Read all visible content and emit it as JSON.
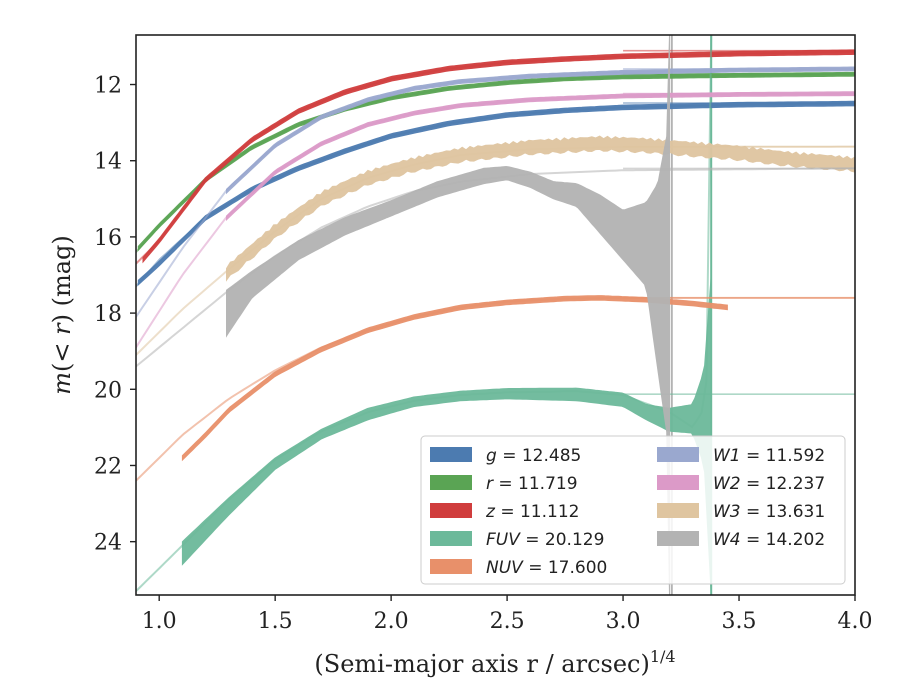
{
  "chart_data": {
    "type": "line",
    "xlabel": "(Semi-major axis r / arcsec)",
    "xlabel_exponent": "1/4",
    "ylabel": "m(< r) (mag)",
    "xlim": [
      0.9,
      4.0
    ],
    "ylim": [
      25.4,
      10.7
    ],
    "y_inverted": true,
    "grid": false,
    "legend_position": "lower-right",
    "x_ticks": [
      "1.0",
      "1.5",
      "2.0",
      "2.5",
      "3.0",
      "3.5",
      "4.0"
    ],
    "y_ticks": [
      "12",
      "14",
      "16",
      "18",
      "20",
      "22",
      "24"
    ],
    "series": [
      {
        "name": "g = 12.485",
        "band": "g",
        "mag": "12.485",
        "color": "#4c7bb0",
        "asymptote": 12.485,
        "model": [
          [
            0.9,
            17.3
          ],
          [
            1.0,
            16.6
          ],
          [
            1.2,
            15.5
          ],
          [
            1.4,
            14.75
          ],
          [
            1.6,
            14.2
          ],
          [
            1.8,
            13.75
          ],
          [
            2.0,
            13.35
          ],
          [
            2.25,
            13.02
          ],
          [
            2.5,
            12.8
          ],
          [
            2.75,
            12.68
          ],
          [
            3.0,
            12.6
          ],
          [
            3.5,
            12.53
          ],
          [
            4.0,
            12.5
          ]
        ],
        "data": [
          [
            0.91,
            17.2
          ],
          [
            1.0,
            16.7
          ],
          [
            1.2,
            15.5
          ],
          [
            1.4,
            14.75
          ],
          [
            1.6,
            14.2
          ],
          [
            1.8,
            13.75
          ],
          [
            2.0,
            13.35
          ],
          [
            2.25,
            13.02
          ],
          [
            2.5,
            12.8
          ],
          [
            2.75,
            12.68
          ],
          [
            3.0,
            12.6
          ],
          [
            3.5,
            12.53
          ],
          [
            4.0,
            12.5
          ]
        ],
        "band_halfwidth": 0.06
      },
      {
        "name": "r = 11.719",
        "band": "r",
        "mag": "11.719",
        "color": "#5aa454",
        "asymptote": 11.719,
        "model": [
          [
            0.9,
            16.4
          ],
          [
            1.0,
            15.7
          ],
          [
            1.2,
            14.5
          ],
          [
            1.4,
            13.65
          ],
          [
            1.6,
            13.05
          ],
          [
            1.8,
            12.65
          ],
          [
            2.0,
            12.35
          ],
          [
            2.25,
            12.1
          ],
          [
            2.5,
            11.95
          ],
          [
            2.75,
            11.85
          ],
          [
            3.0,
            11.8
          ],
          [
            3.5,
            11.76
          ],
          [
            4.0,
            11.73
          ]
        ],
        "data": [
          [
            0.91,
            16.3
          ],
          [
            1.0,
            15.7
          ],
          [
            1.2,
            14.5
          ],
          [
            1.4,
            13.65
          ],
          [
            1.6,
            13.05
          ],
          [
            1.8,
            12.65
          ],
          [
            2.0,
            12.35
          ],
          [
            2.25,
            12.1
          ],
          [
            2.5,
            11.95
          ],
          [
            2.75,
            11.85
          ],
          [
            3.0,
            11.8
          ],
          [
            3.5,
            11.76
          ],
          [
            4.0,
            11.73
          ]
        ],
        "band_halfwidth": 0.05
      },
      {
        "name": "z = 11.112",
        "band": "z",
        "mag": "11.112",
        "color": "#d03d3d",
        "asymptote": 11.112,
        "model": [
          [
            0.9,
            16.7
          ],
          [
            1.0,
            16.1
          ],
          [
            1.2,
            14.5
          ],
          [
            1.4,
            13.45
          ],
          [
            1.6,
            12.7
          ],
          [
            1.8,
            12.2
          ],
          [
            2.0,
            11.85
          ],
          [
            2.25,
            11.58
          ],
          [
            2.5,
            11.42
          ],
          [
            2.75,
            11.33
          ],
          [
            3.0,
            11.26
          ],
          [
            3.5,
            11.19
          ],
          [
            4.0,
            11.15
          ]
        ],
        "data": [
          [
            0.93,
            16.6
          ],
          [
            1.0,
            16.1
          ],
          [
            1.2,
            14.5
          ],
          [
            1.4,
            13.45
          ],
          [
            1.6,
            12.7
          ],
          [
            1.8,
            12.2
          ],
          [
            2.0,
            11.85
          ],
          [
            2.25,
            11.58
          ],
          [
            2.5,
            11.42
          ],
          [
            2.75,
            11.33
          ],
          [
            3.0,
            11.26
          ],
          [
            3.5,
            11.19
          ],
          [
            4.0,
            11.15
          ]
        ],
        "band_halfwidth": 0.06
      },
      {
        "name": "FUV = 20.129",
        "band": "FUV",
        "mag": "20.129",
        "color": "#6cb99a",
        "asymptote": 20.129,
        "model": [
          [
            0.9,
            25.3
          ],
          [
            1.1,
            24.1
          ],
          [
            1.3,
            22.9
          ],
          [
            1.5,
            21.85
          ],
          [
            1.7,
            21.1
          ],
          [
            1.9,
            20.6
          ],
          [
            2.1,
            20.3
          ],
          [
            2.3,
            20.15
          ],
          [
            2.5,
            20.08
          ],
          [
            2.8,
            20.05
          ],
          [
            3.0,
            20.15
          ],
          [
            3.2,
            20.6
          ],
          [
            3.3,
            21.0
          ],
          [
            3.35,
            20.5
          ],
          [
            3.37,
            19.0
          ],
          [
            3.38,
            10.7
          ]
        ],
        "data_upper": [
          [
            1.1,
            24.0
          ],
          [
            1.3,
            22.85
          ],
          [
            1.5,
            21.8
          ],
          [
            1.7,
            21.05
          ],
          [
            1.9,
            20.5
          ],
          [
            2.1,
            20.2
          ],
          [
            2.3,
            20.05
          ],
          [
            2.5,
            19.98
          ],
          [
            2.8,
            19.97
          ],
          [
            3.0,
            20.1
          ],
          [
            3.1,
            20.4
          ],
          [
            3.2,
            20.5
          ],
          [
            3.3,
            20.4
          ],
          [
            3.35,
            19.5
          ],
          [
            3.38,
            17.0
          ]
        ],
        "data_lower": [
          [
            1.1,
            24.6
          ],
          [
            1.3,
            23.3
          ],
          [
            1.5,
            22.1
          ],
          [
            1.7,
            21.3
          ],
          [
            1.9,
            20.8
          ],
          [
            2.1,
            20.45
          ],
          [
            2.3,
            20.3
          ],
          [
            2.5,
            20.25
          ],
          [
            2.8,
            20.3
          ],
          [
            3.0,
            20.45
          ],
          [
            3.1,
            20.8
          ],
          [
            3.2,
            21.1
          ],
          [
            3.3,
            21.15
          ],
          [
            3.35,
            22.0
          ],
          [
            3.38,
            25.4
          ]
        ]
      },
      {
        "name": "NUV = 17.600",
        "band": "NUV",
        "mag": "17.600",
        "color": "#e8906a",
        "asymptote": 17.6,
        "model": [
          [
            0.9,
            22.4
          ],
          [
            1.1,
            21.2
          ],
          [
            1.3,
            20.25
          ],
          [
            1.5,
            19.5
          ],
          [
            1.7,
            18.9
          ],
          [
            1.9,
            18.45
          ],
          [
            2.1,
            18.1
          ],
          [
            2.3,
            17.85
          ],
          [
            2.5,
            17.7
          ],
          [
            2.75,
            17.62
          ],
          [
            3.0,
            17.6
          ],
          [
            4.0,
            17.6
          ]
        ],
        "data": [
          [
            1.1,
            21.8
          ],
          [
            1.2,
            21.2
          ],
          [
            1.3,
            20.55
          ],
          [
            1.5,
            19.6
          ],
          [
            1.7,
            18.95
          ],
          [
            1.9,
            18.45
          ],
          [
            2.1,
            18.1
          ],
          [
            2.3,
            17.85
          ],
          [
            2.5,
            17.72
          ],
          [
            2.75,
            17.62
          ],
          [
            2.9,
            17.6
          ],
          [
            3.1,
            17.65
          ],
          [
            3.3,
            17.75
          ],
          [
            3.45,
            17.85
          ]
        ],
        "band_halfwidth": 0.06
      },
      {
        "name": "W1 = 11.592",
        "band": "W1",
        "mag": "11.592",
        "color": "#9aa8cf",
        "asymptote": 11.592,
        "model": [
          [
            0.9,
            18.1
          ],
          [
            1.1,
            16.3
          ],
          [
            1.3,
            14.7
          ],
          [
            1.5,
            13.6
          ],
          [
            1.7,
            12.85
          ],
          [
            1.9,
            12.4
          ],
          [
            2.1,
            12.1
          ],
          [
            2.3,
            11.92
          ],
          [
            2.6,
            11.78
          ],
          [
            3.0,
            11.68
          ],
          [
            3.5,
            11.62
          ],
          [
            4.0,
            11.59
          ]
        ],
        "data": [
          [
            1.29,
            14.8
          ],
          [
            1.5,
            13.6
          ],
          [
            1.7,
            12.85
          ],
          [
            1.9,
            12.4
          ],
          [
            2.1,
            12.1
          ],
          [
            2.3,
            11.92
          ],
          [
            2.6,
            11.78
          ],
          [
            3.0,
            11.68
          ],
          [
            3.5,
            11.62
          ],
          [
            4.0,
            11.59
          ]
        ],
        "band_halfwidth": 0.05
      },
      {
        "name": "W2 = 12.237",
        "band": "W2",
        "mag": "12.237",
        "color": "#dc9ac8",
        "asymptote": 12.237,
        "model": [
          [
            0.9,
            18.9
          ],
          [
            1.1,
            17.0
          ],
          [
            1.3,
            15.4
          ],
          [
            1.5,
            14.3
          ],
          [
            1.7,
            13.55
          ],
          [
            1.9,
            13.05
          ],
          [
            2.1,
            12.75
          ],
          [
            2.3,
            12.55
          ],
          [
            2.6,
            12.4
          ],
          [
            3.0,
            12.3
          ],
          [
            3.5,
            12.26
          ],
          [
            4.0,
            12.24
          ]
        ],
        "data": [
          [
            1.29,
            15.5
          ],
          [
            1.5,
            14.3
          ],
          [
            1.7,
            13.55
          ],
          [
            1.9,
            13.05
          ],
          [
            2.1,
            12.75
          ],
          [
            2.3,
            12.55
          ],
          [
            2.6,
            12.4
          ],
          [
            3.0,
            12.3
          ],
          [
            3.5,
            12.26
          ],
          [
            4.0,
            12.24
          ]
        ],
        "band_halfwidth": 0.05
      },
      {
        "name": "W3 = 13.631",
        "band": "W3",
        "mag": "13.631",
        "color": "#dfc5a0",
        "asymptote": 13.631,
        "model": [
          [
            0.9,
            19.1
          ],
          [
            1.1,
            17.9
          ],
          [
            1.3,
            16.85
          ],
          [
            1.5,
            15.85
          ],
          [
            1.7,
            15.0
          ],
          [
            1.9,
            14.45
          ],
          [
            2.1,
            14.1
          ],
          [
            2.3,
            13.85
          ],
          [
            2.6,
            13.7
          ],
          [
            3.0,
            13.64
          ],
          [
            4.0,
            13.63
          ]
        ],
        "data": [
          [
            1.29,
            16.95
          ],
          [
            1.5,
            15.85
          ],
          [
            1.7,
            15.0
          ],
          [
            1.9,
            14.45
          ],
          [
            2.1,
            14.1
          ],
          [
            2.3,
            13.85
          ],
          [
            2.6,
            13.65
          ],
          [
            2.9,
            13.55
          ],
          [
            3.1,
            13.6
          ],
          [
            3.3,
            13.7
          ],
          [
            3.5,
            13.8
          ],
          [
            3.7,
            13.95
          ],
          [
            3.9,
            14.05
          ],
          [
            4.0,
            14.1
          ]
        ],
        "band_halfwidth": 0.12,
        "noise": 0.08
      },
      {
        "name": "W4 = 14.202",
        "band": "W4",
        "mag": "14.202",
        "color": "#b3b3b3",
        "asymptote": 14.202,
        "model": [
          [
            0.9,
            19.4
          ],
          [
            1.1,
            18.4
          ],
          [
            1.3,
            17.4
          ],
          [
            1.5,
            16.5
          ],
          [
            1.7,
            15.75
          ],
          [
            1.9,
            15.2
          ],
          [
            2.1,
            14.8
          ],
          [
            2.3,
            14.55
          ],
          [
            2.6,
            14.35
          ],
          [
            3.0,
            14.25
          ],
          [
            4.0,
            14.2
          ]
        ],
        "data_upper": [
          [
            1.29,
            17.4
          ],
          [
            1.4,
            16.9
          ],
          [
            1.6,
            16.1
          ],
          [
            1.8,
            15.5
          ],
          [
            2.0,
            15.05
          ],
          [
            2.2,
            14.55
          ],
          [
            2.4,
            14.2
          ],
          [
            2.5,
            14.15
          ],
          [
            2.6,
            14.3
          ],
          [
            2.7,
            14.55
          ],
          [
            2.8,
            14.6
          ],
          [
            2.9,
            14.9
          ],
          [
            3.0,
            15.3
          ],
          [
            3.1,
            15.1
          ],
          [
            3.15,
            14.6
          ],
          [
            3.19,
            13.3
          ],
          [
            3.2,
            10.7
          ]
        ],
        "data_lower": [
          [
            1.29,
            18.6
          ],
          [
            1.4,
            17.6
          ],
          [
            1.6,
            16.6
          ],
          [
            1.8,
            15.95
          ],
          [
            2.0,
            15.45
          ],
          [
            2.2,
            14.95
          ],
          [
            2.4,
            14.6
          ],
          [
            2.5,
            14.5
          ],
          [
            2.6,
            14.7
          ],
          [
            2.7,
            15.0
          ],
          [
            2.8,
            15.2
          ],
          [
            2.9,
            15.9
          ],
          [
            3.0,
            16.6
          ],
          [
            3.1,
            17.3
          ],
          [
            3.15,
            19.5
          ],
          [
            3.19,
            21.2
          ],
          [
            3.2,
            25.4
          ]
        ]
      }
    ],
    "vertical_lines": [
      {
        "x": 3.21,
        "color": "#b3b3b3"
      },
      {
        "x": 3.38,
        "color": "#6cb99a"
      }
    ]
  }
}
